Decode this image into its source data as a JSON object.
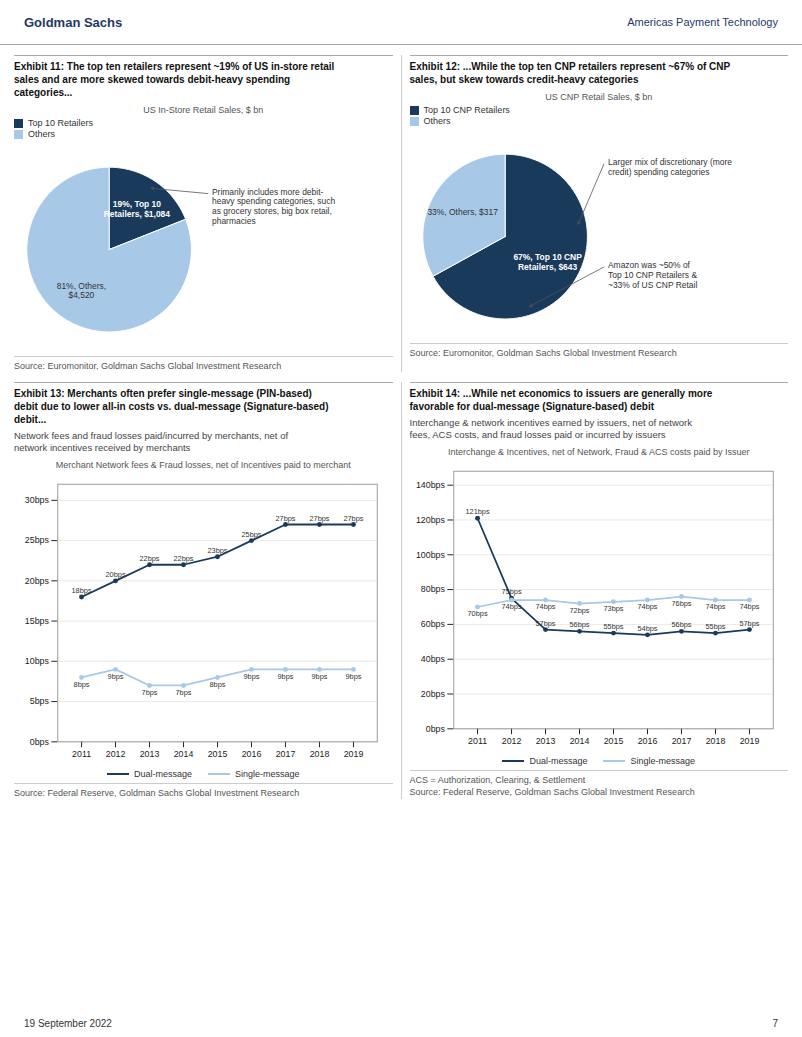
{
  "header_left": "Goldman Sachs",
  "header_right": "Americas Payment Technology",
  "header_color": "#1f3864",
  "footer_text": "19 September 2022",
  "footer_page": "7",
  "chart_data": [
    {
      "type": "pie",
      "title": "Exhibit 11: The top ten retailers represent ~19% of US in-store retail\nsales and are more skewed towards debit-heavy spending\ncategories...",
      "chart_title": "US In-Store Retail Sales, $ bn",
      "categories": [
        "Top 10 Retailers",
        "Others"
      ],
      "values": [
        19,
        81
      ],
      "value_labels": [
        "19%, Top 10\nRetailers, $1,084",
        "81%, Others,\n$4,520"
      ],
      "colors": [
        "#1a3a5c",
        "#a8c8e8"
      ],
      "data_labels": true,
      "legend": "top-left",
      "annotations": [
        "Primarily includes more debit-\nheavy spending categories, such\nas grocery stores, big box retail,\npharmacies"
      ],
      "caption": "Source: Euromonitor, Goldman Sachs Global Investment Research"
    },
    {
      "type": "pie",
      "title": "Exhibit 12: ...While the top ten CNP retailers represent ~67% of CNP\nsales, but skew towards credit-heavy categories",
      "chart_title": "US CNP Retail Sales, $ bn",
      "categories": [
        "Top 10 CNP Retailers",
        "Others"
      ],
      "values": [
        67,
        33
      ],
      "value_labels": [
        "67%, Top 10 CNP\nRetailers, $643",
        "33%, Others, $317"
      ],
      "colors": [
        "#1a3a5c",
        "#a8c8e8"
      ],
      "data_labels": true,
      "legend": "top-left",
      "annotations": [
        "Larger mix of discretionary (more\ncredit) spending categories",
        "Amazon was ~50% of\nTop 10 CNP Retailers &\n~33% of US CNP Retail"
      ],
      "caption": "Source: Euromonitor, Goldman Sachs Global Investment Research"
    },
    {
      "type": "line",
      "title": "Exhibit 13: Merchants often prefer single-message (PIN-based)\ndebit due to lower all-in costs vs. dual-message (Signature-based)\ndebit...",
      "subtitle": "Network fees and fraud losses paid/incurred by merchants, net of\nnetwork incentives received by merchants",
      "chart_title": "Merchant Network fees & Fraud losses, net of Incentives paid to merchant",
      "x": [
        2011,
        2012,
        2013,
        2014,
        2015,
        2016,
        2017,
        2018,
        2019
      ],
      "series": [
        {
          "name": "Dual-message",
          "color": "#1a3a5c",
          "marker": "circle",
          "values": [
            18,
            20,
            22,
            22,
            23,
            25,
            27,
            27,
            27
          ],
          "value_labels": [
            "18bps",
            "20bps",
            "22bps",
            "22bps",
            "23bps",
            "25bps",
            "27bps",
            "27bps",
            "27bps"
          ]
        },
        {
          "name": "Single-message",
          "color": "#a8c8e8",
          "marker": "circle",
          "values": [
            8,
            9,
            7,
            7,
            8,
            9,
            9,
            9,
            9
          ],
          "value_labels": [
            "8bps",
            "9bps",
            "7bps",
            "7bps",
            "8bps",
            "9bps",
            "9bps",
            "9bps",
            "9bps"
          ]
        }
      ],
      "xlim": [
        2010.3,
        2019.7
      ],
      "xticks": [
        2011,
        2012,
        2013,
        2014,
        2015,
        2016,
        2017,
        2018,
        2019
      ],
      "ylim": [
        0,
        32
      ],
      "yticks": [
        {
          "value": 0,
          "label": "0bps"
        },
        {
          "value": 5,
          "label": "5bps"
        },
        {
          "value": 10,
          "label": "10bps"
        },
        {
          "value": 15,
          "label": "15bps"
        },
        {
          "value": 20,
          "label": "20bps"
        },
        {
          "value": 25,
          "label": "25bps"
        },
        {
          "value": 30,
          "label": "30bps"
        }
      ],
      "grid": true,
      "legend": "bottom",
      "data_labels": true,
      "caption": "Source: Federal Reserve, Goldman Sachs Global Investment Research"
    },
    {
      "type": "line",
      "title": "Exhibit 14: ...While net economics to issuers are generally more\nfavorable for dual-message (Signature-based) debit",
      "subtitle": "Interchange & network incentives earned by issuers, net of network\nfees, ACS costs, and fraud losses paid or incurred by issuers",
      "chart_title": "Interchange & Incentives, net of Network, Fraud & ACS costs paid by Issuer",
      "x": [
        2011,
        2012,
        2013,
        2014,
        2015,
        2016,
        2017,
        2018,
        2019
      ],
      "series": [
        {
          "name": "Dual-message",
          "color": "#1a3a5c",
          "marker": "circle",
          "values": [
            121,
            75,
            57,
            56,
            55,
            54,
            56,
            55,
            57
          ],
          "value_labels": [
            "121bps",
            "75bps",
            "57bps",
            "56bps",
            "55bps",
            "54bps",
            "56bps",
            "55bps",
            "57bps"
          ]
        },
        {
          "name": "Single-message",
          "color": "#a8c8e8",
          "marker": "circle",
          "values": [
            70,
            74,
            74,
            72,
            73,
            74,
            76,
            74,
            74
          ],
          "value_labels": [
            "70bps",
            "74bps",
            "74bps",
            "72bps",
            "73bps",
            "74bps",
            "76bps",
            "74bps",
            "74bps"
          ]
        }
      ],
      "xlim": [
        2010.3,
        2019.7
      ],
      "xticks": [
        2011,
        2012,
        2013,
        2014,
        2015,
        2016,
        2017,
        2018,
        2019
      ],
      "ylim": [
        0,
        148
      ],
      "yticks": [
        {
          "value": 0,
          "label": "0bps"
        },
        {
          "value": 20,
          "label": "20bps"
        },
        {
          "value": 40,
          "label": "40bps"
        },
        {
          "value": 60,
          "label": "60bps"
        },
        {
          "value": 80,
          "label": "80bps"
        },
        {
          "value": 100,
          "label": "100bps"
        },
        {
          "value": 120,
          "label": "120bps"
        },
        {
          "value": 140,
          "label": "140bps"
        }
      ],
      "grid": true,
      "legend": "bottom",
      "data_labels": true,
      "note": "ACS = Authorization, Clearing, & Settlement",
      "caption": "Source: Federal Reserve, Goldman Sachs Global Investment Research"
    }
  ]
}
